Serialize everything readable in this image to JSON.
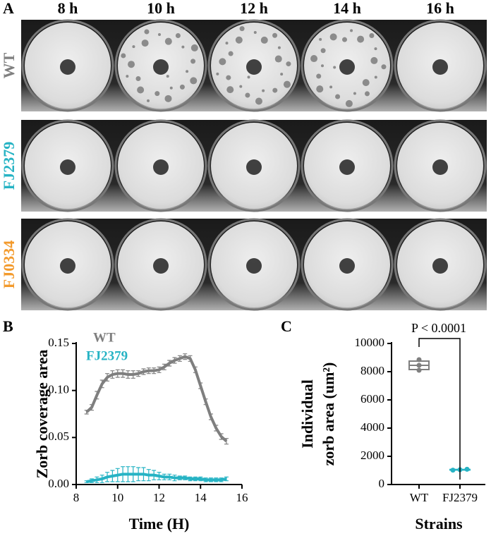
{
  "panel_a": {
    "label": "A",
    "columns": [
      "8 h",
      "10 h",
      "12 h",
      "14 h",
      "16 h"
    ],
    "rows": [
      {
        "label": "WT",
        "color": "#808080"
      },
      {
        "label": "FJ2379",
        "color": "#26b3c4"
      },
      {
        "label": "FJ0334",
        "color": "#f39a2c"
      }
    ]
  },
  "chart_data": [
    {
      "type": "line",
      "panel": "B",
      "ylabel": "Zorb coverage area",
      "xlabel": "Time (H)",
      "xlim": [
        8,
        16
      ],
      "xticks": [
        8,
        10,
        12,
        14,
        16
      ],
      "ylim": [
        0,
        0.15
      ],
      "yticks": [
        {
          "value": 0,
          "label": "0.00"
        },
        0.05,
        {
          "value": 0.1,
          "label": "0.10"
        },
        0.15
      ],
      "x": [
        8.5,
        8.75,
        9,
        9.25,
        9.5,
        9.75,
        10,
        10.25,
        10.5,
        10.75,
        11,
        11.25,
        11.5,
        11.75,
        12,
        12.25,
        12.5,
        12.75,
        13,
        13.25,
        13.5,
        13.75,
        14,
        14.25,
        14.5,
        14.75,
        15,
        15.25
      ],
      "series": [
        {
          "name": "WT",
          "color": "#7f7f7f",
          "values": [
            0.077,
            0.082,
            0.095,
            0.107,
            0.114,
            0.117,
            0.118,
            0.118,
            0.117,
            0.117,
            0.118,
            0.12,
            0.121,
            0.121,
            0.122,
            0.125,
            0.129,
            0.132,
            0.134,
            0.136,
            0.134,
            0.122,
            0.105,
            0.088,
            0.072,
            0.06,
            0.051,
            0.046
          ],
          "errors": [
            0.002,
            0.003,
            0.004,
            0.004,
            0.004,
            0.004,
            0.004,
            0.004,
            0.004,
            0.004,
            0.003,
            0.003,
            0.003,
            0.003,
            0.003,
            0.003,
            0.003,
            0.003,
            0.003,
            0.003,
            0.003,
            0.003,
            0.003,
            0.003,
            0.003,
            0.003,
            0.003,
            0.003
          ]
        },
        {
          "name": "FJ2379",
          "color": "#26b3c4",
          "values": [
            0.003,
            0.004,
            0.005,
            0.006,
            0.008,
            0.009,
            0.01,
            0.011,
            0.011,
            0.011,
            0.011,
            0.011,
            0.01,
            0.01,
            0.009,
            0.008,
            0.008,
            0.007,
            0.007,
            0.007,
            0.006,
            0.006,
            0.006,
            0.005,
            0.005,
            0.005,
            0.005,
            0.006
          ],
          "errors": [
            0.001,
            0.002,
            0.003,
            0.004,
            0.005,
            0.006,
            0.007,
            0.008,
            0.008,
            0.008,
            0.007,
            0.007,
            0.006,
            0.005,
            0.004,
            0.003,
            0.003,
            0.003,
            0.002,
            0.002,
            0.002,
            0.002,
            0.002,
            0.002,
            0.002,
            0.002,
            0.002,
            0.002
          ]
        }
      ]
    },
    {
      "type": "box",
      "panel": "C",
      "ylabel_lines": [
        "Individual",
        "zorb area (um²)"
      ],
      "xlabel": "Strains",
      "annotation": "P < 0.0001",
      "ylim": [
        0,
        10000
      ],
      "yticks": [
        0,
        2000,
        4000,
        6000,
        8000,
        10000
      ],
      "categories": [
        "WT",
        "FJ2379"
      ],
      "boxes": [
        {
          "color": "#7f7f7f",
          "min": 8100,
          "q1": 8150,
          "median": 8450,
          "q3": 8750,
          "max": 8850,
          "points": [
            8100,
            8450,
            8850
          ]
        },
        {
          "color": "#26b3c4",
          "min": 1020,
          "q1": 1030,
          "median": 1050,
          "q3": 1065,
          "max": 1080,
          "points": [
            1020,
            1050,
            1080
          ]
        }
      ]
    }
  ]
}
